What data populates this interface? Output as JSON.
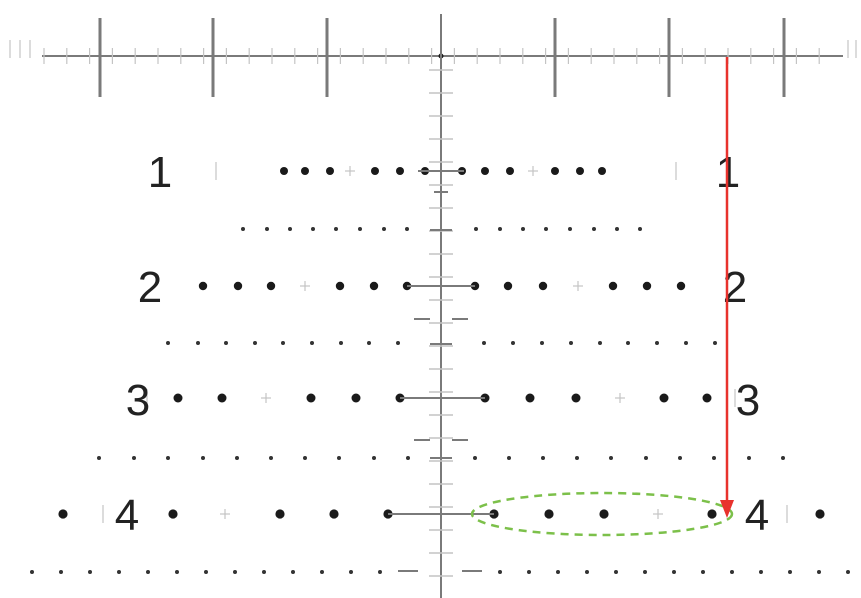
{
  "diagram": {
    "row_labels": [
      {
        "left": "1",
        "right": "1"
      },
      {
        "left": "2",
        "right": "2"
      },
      {
        "left": "3",
        "right": "3"
      },
      {
        "left": "4",
        "right": "4"
      }
    ],
    "colors": {
      "line": "#7a7a7a",
      "faint": "#c4c4c4",
      "dot": "#1a1a1a",
      "small_dot": "#333333",
      "arrow": "#e8322d",
      "highlight": "#7cc04a",
      "label": "#222222"
    }
  }
}
